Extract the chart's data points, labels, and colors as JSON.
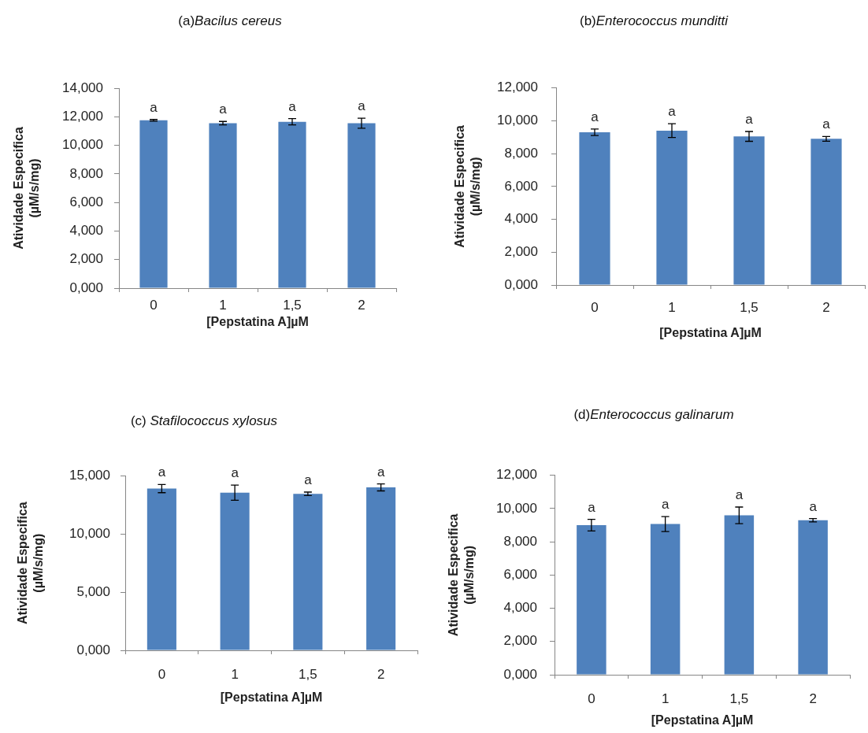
{
  "chart_data": [
    {
      "type": "bar",
      "title": "(a)Bacilus cereus",
      "xlabel": "[Pepstatina A]µM",
      "ylabel": "Atividade Especifica\n(µM/s/mg)",
      "categories": [
        "0",
        "1",
        "1,5",
        "2"
      ],
      "values": [
        11.75,
        11.55,
        11.65,
        11.55
      ],
      "errors": [
        0.06,
        0.12,
        0.22,
        0.35
      ],
      "color": "#4f81bd",
      "ylim": [
        0,
        14
      ],
      "yticks": [
        {
          "value": 0,
          "label": "0,000"
        },
        {
          "value": 2,
          "label": "2,000"
        },
        {
          "value": 4,
          "label": "4,000"
        },
        {
          "value": 6,
          "label": "6,000"
        },
        {
          "value": 8,
          "label": "8,000"
        },
        {
          "value": 10,
          "label": "10,000"
        },
        {
          "value": 12,
          "label": "12,000"
        },
        {
          "value": 14,
          "label": "14,000"
        }
      ],
      "annotations": [
        "a",
        "a",
        "a",
        "a"
      ]
    },
    {
      "type": "bar",
      "title": "(b)Enterococcus munditti",
      "xlabel": "[Pepstatina A]µM",
      "ylabel": "Atividade Especifica\n(µM/s/mg)",
      "categories": [
        "0",
        "1",
        "1,5",
        "2"
      ],
      "values": [
        9.3,
        9.4,
        9.05,
        8.9
      ],
      "errors": [
        0.2,
        0.42,
        0.3,
        0.14
      ],
      "color": "#4f81bd",
      "ylim": [
        0,
        12
      ],
      "yticks": [
        {
          "value": 0,
          "label": "0,000"
        },
        {
          "value": 2,
          "label": "2,000"
        },
        {
          "value": 4,
          "label": "4,000"
        },
        {
          "value": 6,
          "label": "6,000"
        },
        {
          "value": 8,
          "label": "8,000"
        },
        {
          "value": 10,
          "label": "10,000"
        },
        {
          "value": 12,
          "label": "12,000"
        }
      ],
      "annotations": [
        "a",
        "a",
        "a",
        "a"
      ]
    },
    {
      "type": "bar",
      "title": "(c) Stafilococcus xylosus",
      "xlabel": "[Pepstatina A]µM",
      "ylabel": "Atividade Especifica\n(µM/s/mg)",
      "categories": [
        "0",
        "1",
        "1,5",
        "2"
      ],
      "values": [
        13.9,
        13.55,
        13.45,
        14.0
      ],
      "errors": [
        0.35,
        0.65,
        0.15,
        0.3
      ],
      "color": "#4f81bd",
      "ylim": [
        0,
        15
      ],
      "yticks": [
        {
          "value": 0,
          "label": "0,000"
        },
        {
          "value": 5,
          "label": "5,000"
        },
        {
          "value": 10,
          "label": "10,000"
        },
        {
          "value": 15,
          "label": "15,000"
        }
      ],
      "annotations": [
        "a",
        "a",
        "a",
        "a"
      ]
    },
    {
      "type": "bar",
      "title": "(d)Enterococcus galinarum",
      "xlabel": "[Pepstatina A]µM",
      "ylabel": "Atividade Especifica\n(µM/s/mg)",
      "categories": [
        "0",
        "1",
        "1,5",
        "2"
      ],
      "values": [
        9.0,
        9.07,
        9.59,
        9.3
      ],
      "errors": [
        0.35,
        0.45,
        0.5,
        0.1
      ],
      "color": "#4f81bd",
      "ylim": [
        0,
        12
      ],
      "yticks": [
        {
          "value": 0,
          "label": "0,000"
        },
        {
          "value": 2,
          "label": "2,000"
        },
        {
          "value": 4,
          "label": "4,000"
        },
        {
          "value": 6,
          "label": "6,000"
        },
        {
          "value": 8,
          "label": "8,000"
        },
        {
          "value": 10,
          "label": "10,000"
        },
        {
          "value": 12,
          "label": "12,000"
        }
      ],
      "annotations": [
        "a",
        "a",
        "a",
        "a"
      ]
    }
  ]
}
